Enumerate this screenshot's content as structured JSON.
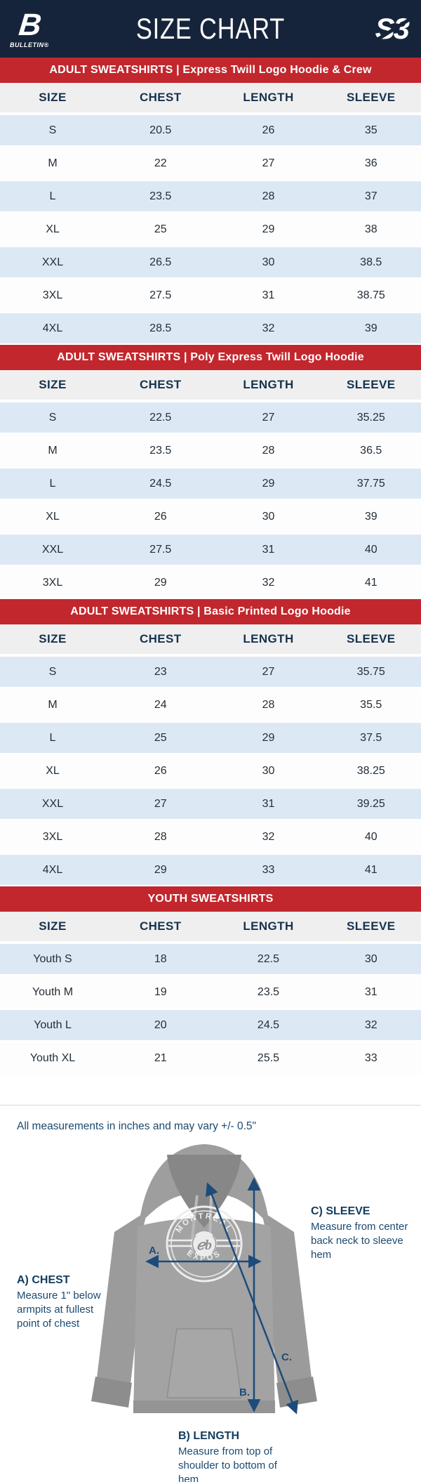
{
  "header": {
    "title": "SIZE CHART",
    "left_logo_text": "B",
    "left_logo_sub": "BULLETIN®",
    "right_logo_text": "S3"
  },
  "columns": [
    "SIZE",
    "CHEST",
    "LENGTH",
    "SLEEVE"
  ],
  "sections": [
    {
      "banner": "ADULT SWEATSHIRTS | Express Twill Logo Hoodie & Crew",
      "rows": [
        [
          "S",
          "20.5",
          "26",
          "35"
        ],
        [
          "M",
          "22",
          "27",
          "36"
        ],
        [
          "L",
          "23.5",
          "28",
          "37"
        ],
        [
          "XL",
          "25",
          "29",
          "38"
        ],
        [
          "XXL",
          "26.5",
          "30",
          "38.5"
        ],
        [
          "3XL",
          "27.5",
          "31",
          "38.75"
        ],
        [
          "4XL",
          "28.5",
          "32",
          "39"
        ]
      ]
    },
    {
      "banner": "ADULT SWEATSHIRTS | Poly Express Twill Logo Hoodie",
      "rows": [
        [
          "S",
          "22.5",
          "27",
          "35.25"
        ],
        [
          "M",
          "23.5",
          "28",
          "36.5"
        ],
        [
          "L",
          "24.5",
          "29",
          "37.75"
        ],
        [
          "XL",
          "26",
          "30",
          "39"
        ],
        [
          "XXL",
          "27.5",
          "31",
          "40"
        ],
        [
          "3XL",
          "29",
          "32",
          "41"
        ]
      ]
    },
    {
      "banner": "ADULT SWEATSHIRTS | Basic Printed Logo Hoodie",
      "rows": [
        [
          "S",
          "23",
          "27",
          "35.75"
        ],
        [
          "M",
          "24",
          "28",
          "35.5"
        ],
        [
          "L",
          "25",
          "29",
          "37.5"
        ],
        [
          "XL",
          "26",
          "30",
          "38.25"
        ],
        [
          "XXL",
          "27",
          "31",
          "39.25"
        ],
        [
          "3XL",
          "28",
          "32",
          "40"
        ],
        [
          "4XL",
          "29",
          "33",
          "41"
        ]
      ]
    },
    {
      "banner": "YOUTH SWEATSHIRTS",
      "rows": [
        [
          "Youth S",
          "18",
          "22.5",
          "30"
        ],
        [
          "Youth M",
          "19",
          "23.5",
          "31"
        ],
        [
          "Youth L",
          "20",
          "24.5",
          "32"
        ],
        [
          "Youth XL",
          "21",
          "25.5",
          "33"
        ]
      ]
    }
  ],
  "footer": {
    "note": "All measurements in inches and may vary +/- 0.5\"",
    "annotations": {
      "chest": {
        "title": "A) CHEST",
        "desc": "Measure 1\" below armpits at fullest point of chest"
      },
      "length": {
        "title": "B) LENGTH",
        "desc": "Measure from top of shoulder to bottom of hem"
      },
      "sleeve": {
        "title": "C) SLEEVE",
        "desc": "Measure from center back neck to sleeve hem"
      }
    },
    "markers": {
      "a": "A.",
      "b": "B.",
      "c": "C."
    },
    "hoodie_logo": {
      "top": "MONTRÉAL",
      "bottom": "EXPOS"
    }
  },
  "colors": {
    "navy": "#16243B",
    "red": "#C1272D",
    "row_blue": "#DCE9F5",
    "header_gray": "#F0EFEF",
    "arrow_blue": "#1D4B7A"
  }
}
